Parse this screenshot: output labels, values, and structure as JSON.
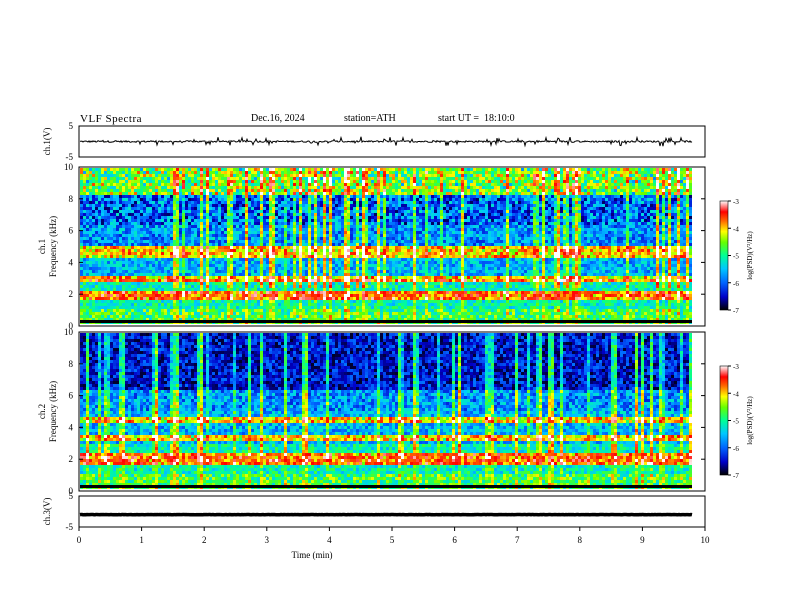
{
  "header": {
    "title": "VLF Spectra",
    "date": "Dec.16, 2024",
    "station": "station=ATH",
    "start": "start UT =  18:10:0"
  },
  "colors": {
    "cmap": [
      "#000000",
      "#0000c8",
      "#0064ff",
      "#00c8ff",
      "#00ff96",
      "#64ff00",
      "#ffff00",
      "#ff6400",
      "#ff0000",
      "#ffffff"
    ],
    "trace": "#000000"
  },
  "chart_data": [
    {
      "type": "line",
      "name": "ch1-waveform",
      "ylabel": "ch.1(V)",
      "ylim": [
        -5,
        5
      ],
      "yticks": [
        "5",
        "-5"
      ],
      "xlim": [
        0,
        10
      ],
      "baseline": 0,
      "noise_amplitude": 0.9
    },
    {
      "type": "heatmap",
      "name": "ch1-spectrogram",
      "ylabel": "ch.1",
      "ylabel2": "Frequency (kHz)",
      "ylim": [
        0,
        10
      ],
      "yticks": [
        "0",
        "2",
        "4",
        "6",
        "8",
        "10"
      ],
      "xlim": [
        0,
        9.8
      ],
      "bands_khz": [
        0.5,
        2.0,
        2.2,
        3.0,
        4.5,
        5.0
      ],
      "colorbar": {
        "label": "log(PSD)(V²/Hz)",
        "ticks": [
          "-3",
          "-4",
          "-5",
          "-6",
          "-7"
        ],
        "range": [
          -7,
          -3
        ]
      }
    },
    {
      "type": "heatmap",
      "name": "ch2-spectrogram",
      "ylabel": "ch.2",
      "ylabel2": "Frequency (kHz)",
      "ylim": [
        0,
        10
      ],
      "yticks": [
        "0",
        "2",
        "4",
        "6",
        "8",
        "10"
      ],
      "xlim": [
        0,
        9.8
      ],
      "bands_khz": [
        0.5,
        2.0,
        2.3,
        3.5,
        4.6
      ],
      "colorbar": {
        "label": "log(PSD)(V²/Hz)",
        "ticks": [
          "-3",
          "-4",
          "-5",
          "-6",
          "-7"
        ],
        "range": [
          -7,
          -3
        ]
      }
    },
    {
      "type": "line",
      "name": "ch3-waveform",
      "ylabel": "ch.3(V)",
      "ylim": [
        -5,
        5
      ],
      "yticks": [
        "5",
        "-5"
      ],
      "xlim": [
        0,
        10
      ],
      "baseline": -1.0,
      "noise_amplitude": 0.15
    }
  ],
  "xaxis": {
    "label": "Time (min)",
    "ticks": [
      "0",
      "1",
      "2",
      "3",
      "4",
      "5",
      "6",
      "7",
      "8",
      "9",
      "10"
    ],
    "range": [
      0,
      10
    ]
  }
}
